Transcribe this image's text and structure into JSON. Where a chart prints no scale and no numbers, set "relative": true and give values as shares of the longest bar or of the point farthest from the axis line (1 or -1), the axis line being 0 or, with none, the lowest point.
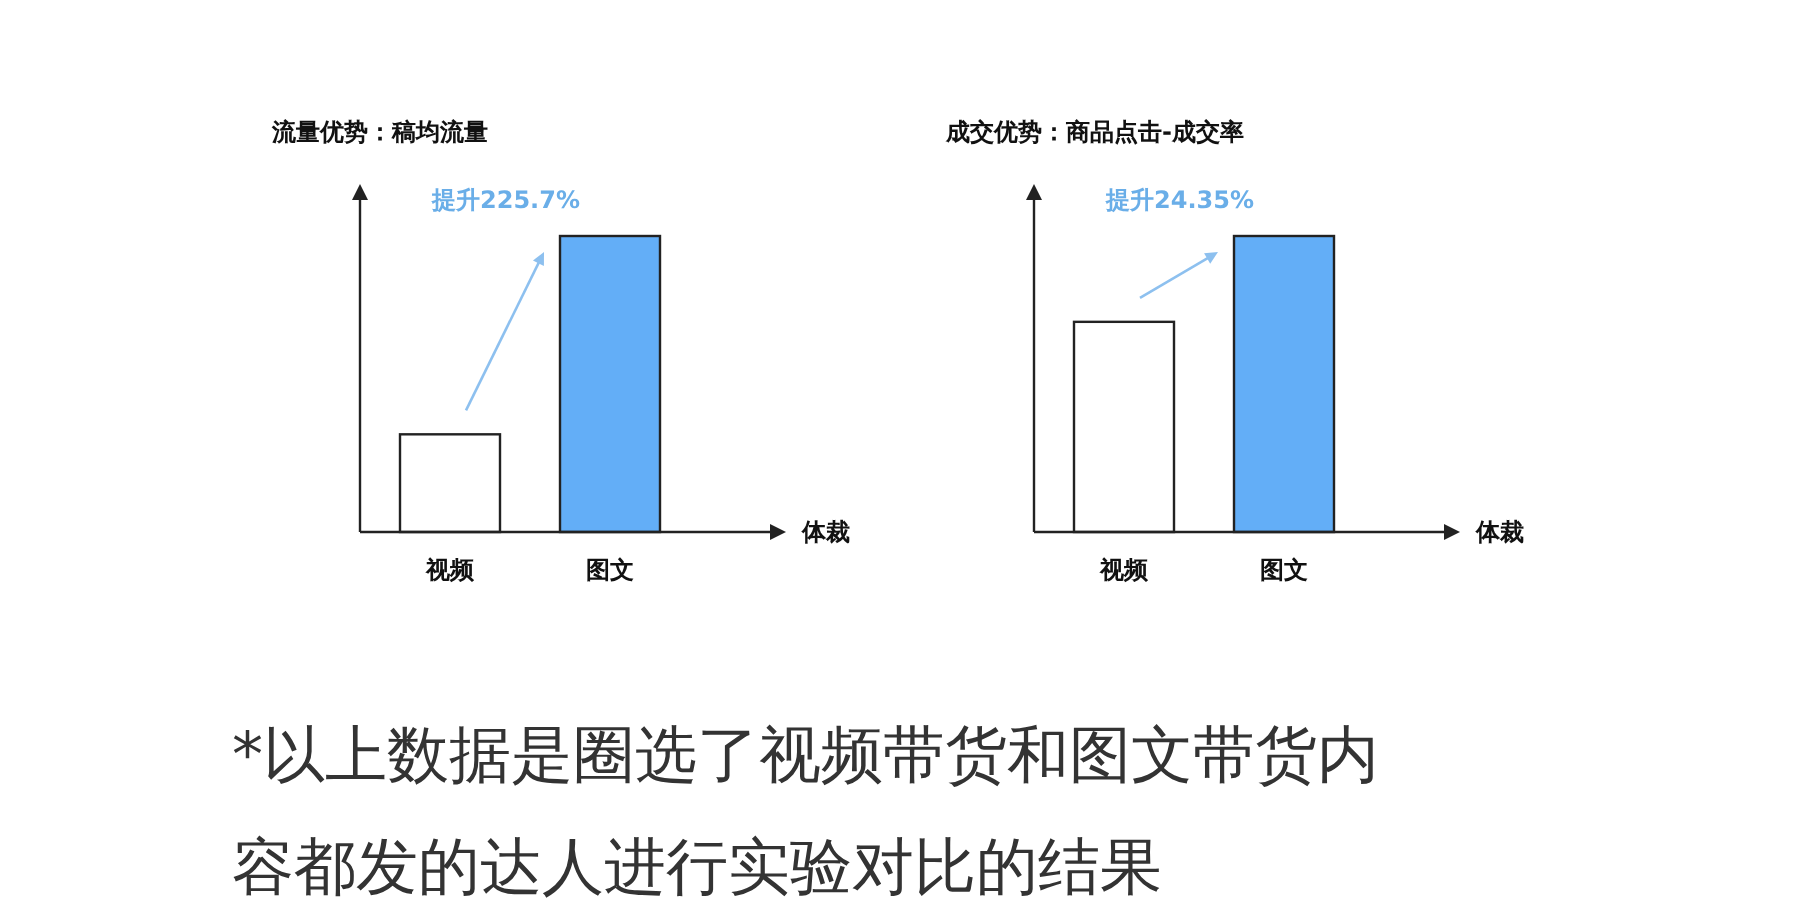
{
  "chart_data": [
    {
      "type": "bar",
      "title": "流量优势：稿均流量",
      "xlabel": "体裁",
      "categories": [
        "视频",
        "图文"
      ],
      "values": [
        0.33,
        1
      ],
      "colors": [
        "#ffffff",
        "#63aef7"
      ],
      "relative": true,
      "annotations": [
        "提升225.7%"
      ]
    },
    {
      "type": "bar",
      "title": "成交优势：商品点击-成交率",
      "xlabel": "体裁",
      "categories": [
        "视频",
        "图文"
      ],
      "values": [
        0.71,
        1
      ],
      "colors": [
        "#ffffff",
        "#63aef7"
      ],
      "relative": true,
      "annotations": [
        "提升24.35%",
        "*以上数据是圈选了视频带货和图文带货内容都发的达人进行实验对比的结果"
      ]
    }
  ]
}
